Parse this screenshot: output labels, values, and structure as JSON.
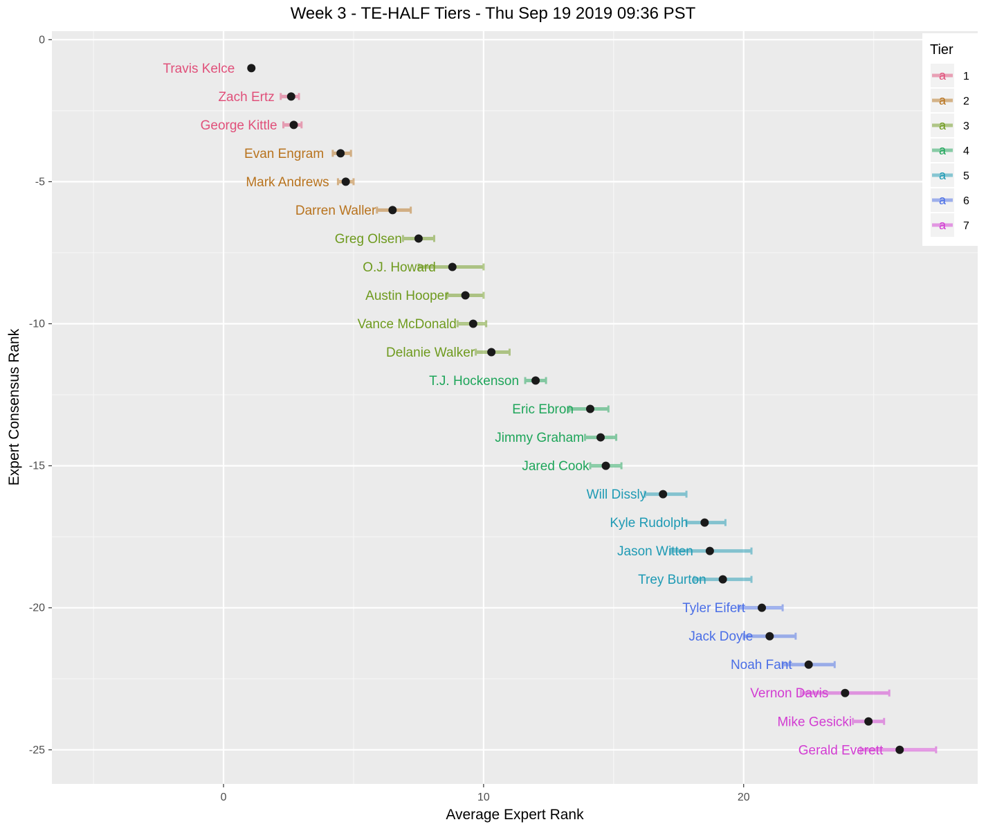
{
  "chart_data": {
    "type": "scatter",
    "title": "Week 3 - TE-HALF Tiers - Thu Sep 19 2019 09:36 PST",
    "xlabel": "Average Expert Rank",
    "ylabel": "Expert Consensus Rank",
    "xlim": [
      -6.6,
      29.0
    ],
    "ylim": [
      -26.2,
      0.3
    ],
    "x_ticks": [
      0,
      10,
      20
    ],
    "y_ticks": [
      0,
      -5,
      -10,
      -15,
      -20,
      -25
    ],
    "grid": true,
    "legend": {
      "title": "Tier",
      "placement": "right",
      "key_glyph": "a",
      "entries": [
        {
          "label": "1",
          "color": "#E0507A"
        },
        {
          "label": "2",
          "color": "#B8731E"
        },
        {
          "label": "3",
          "color": "#6E9A1E"
        },
        {
          "label": "4",
          "color": "#1EA55A"
        },
        {
          "label": "5",
          "color": "#1E9AB4"
        },
        {
          "label": "6",
          "color": "#4A6EE6"
        },
        {
          "label": "7",
          "color": "#D23CD2"
        }
      ]
    },
    "points": [
      {
        "name": "Travis Kelce",
        "rank": -1,
        "avg": 1.07,
        "min": 1.07,
        "max": 1.07,
        "tier": 1
      },
      {
        "name": "Zach Ertz",
        "rank": -2,
        "avg": 2.6,
        "min": 2.2,
        "max": 2.9,
        "tier": 1
      },
      {
        "name": "George Kittle",
        "rank": -3,
        "avg": 2.7,
        "min": 2.3,
        "max": 3.0,
        "tier": 1
      },
      {
        "name": "Evan Engram",
        "rank": -4,
        "avg": 4.5,
        "min": 4.2,
        "max": 4.9,
        "tier": 2
      },
      {
        "name": "Mark Andrews",
        "rank": -5,
        "avg": 4.7,
        "min": 4.4,
        "max": 5.0,
        "tier": 2
      },
      {
        "name": "Darren Waller",
        "rank": -6,
        "avg": 6.5,
        "min": 5.9,
        "max": 7.2,
        "tier": 2
      },
      {
        "name": "Greg Olsen",
        "rank": -7,
        "avg": 7.5,
        "min": 6.9,
        "max": 8.1,
        "tier": 3
      },
      {
        "name": "O.J. Howard",
        "rank": -8,
        "avg": 8.8,
        "min": 7.5,
        "max": 10.0,
        "tier": 3
      },
      {
        "name": "Austin Hooper",
        "rank": -9,
        "avg": 9.3,
        "min": 8.6,
        "max": 10.0,
        "tier": 3
      },
      {
        "name": "Vance McDonald",
        "rank": -10,
        "avg": 9.6,
        "min": 9.0,
        "max": 10.1,
        "tier": 3
      },
      {
        "name": "Delanie Walker",
        "rank": -11,
        "avg": 10.3,
        "min": 9.7,
        "max": 11.0,
        "tier": 3
      },
      {
        "name": "T.J. Hockenson",
        "rank": -12,
        "avg": 12.0,
        "min": 11.6,
        "max": 12.4,
        "tier": 4
      },
      {
        "name": "Eric Ebron",
        "rank": -13,
        "avg": 14.1,
        "min": 13.3,
        "max": 14.8,
        "tier": 4
      },
      {
        "name": "Jimmy Graham",
        "rank": -14,
        "avg": 14.5,
        "min": 13.9,
        "max": 15.1,
        "tier": 4
      },
      {
        "name": "Jared Cook",
        "rank": -15,
        "avg": 14.7,
        "min": 14.1,
        "max": 15.3,
        "tier": 4
      },
      {
        "name": "Will Dissly",
        "rank": -16,
        "avg": 16.9,
        "min": 16.2,
        "max": 17.8,
        "tier": 5
      },
      {
        "name": "Kyle Rudolph",
        "rank": -17,
        "avg": 18.5,
        "min": 17.8,
        "max": 19.3,
        "tier": 5
      },
      {
        "name": "Jason Witten",
        "rank": -18,
        "avg": 18.7,
        "min": 17.2,
        "max": 20.3,
        "tier": 5
      },
      {
        "name": "Trey Burton",
        "rank": -19,
        "avg": 19.2,
        "min": 18.1,
        "max": 20.3,
        "tier": 5
      },
      {
        "name": "Tyler Eifert",
        "rank": -20,
        "avg": 20.7,
        "min": 19.8,
        "max": 21.5,
        "tier": 6
      },
      {
        "name": "Jack Doyle",
        "rank": -21,
        "avg": 21.0,
        "min": 20.0,
        "max": 22.0,
        "tier": 6
      },
      {
        "name": "Noah Fant",
        "rank": -22,
        "avg": 22.5,
        "min": 21.5,
        "max": 23.5,
        "tier": 6
      },
      {
        "name": "Vernon Davis",
        "rank": -23,
        "avg": 23.9,
        "min": 22.2,
        "max": 25.6,
        "tier": 7
      },
      {
        "name": "Mike Gesicki",
        "rank": -24,
        "avg": 24.8,
        "min": 24.2,
        "max": 25.4,
        "tier": 7
      },
      {
        "name": "Gerald Everett",
        "rank": -25,
        "avg": 26.0,
        "min": 24.5,
        "max": 27.4,
        "tier": 7
      }
    ]
  }
}
